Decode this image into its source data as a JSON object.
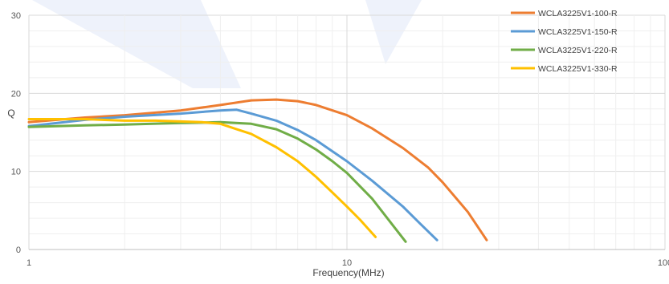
{
  "chart_data": {
    "type": "line",
    "title": "",
    "xlabel": "Frequency(MHz)",
    "ylabel": "Q",
    "x_scale": "log",
    "xlim": [
      1,
      100
    ],
    "ylim": [
      0,
      30
    ],
    "x_ticks": [
      1,
      10,
      100
    ],
    "x_tick_labels": [
      "1",
      "10",
      "100"
    ],
    "y_ticks": [
      0,
      10,
      20,
      30
    ],
    "y_tick_labels": [
      "0",
      "10",
      "20",
      "30"
    ],
    "grid": "major and minor",
    "legend_position": "top-right",
    "series": [
      {
        "name": "WCLA3225V1-100-R",
        "color": "#ED7D31",
        "x": [
          1,
          1.5,
          2,
          3,
          4,
          5,
          6,
          7,
          8,
          10,
          12,
          15,
          18,
          20,
          24,
          27.5
        ],
        "y": [
          16.3,
          16.9,
          17.2,
          17.8,
          18.5,
          19.1,
          19.2,
          19.0,
          18.5,
          17.2,
          15.5,
          13.0,
          10.5,
          8.6,
          4.8,
          1.2
        ]
      },
      {
        "name": "WCLA3225V1-150-R",
        "color": "#5B9BD5",
        "x": [
          1,
          1.5,
          2,
          3,
          4,
          4.5,
          5,
          6,
          7,
          8,
          10,
          12,
          15,
          17,
          19.2
        ],
        "y": [
          15.8,
          16.6,
          17.0,
          17.4,
          17.8,
          17.9,
          17.4,
          16.5,
          15.3,
          14.0,
          11.3,
          8.8,
          5.5,
          3.3,
          1.2
        ]
      },
      {
        "name": "WCLA3225V1-220-R",
        "color": "#70AD47",
        "x": [
          1,
          1.5,
          2,
          3,
          4,
          5,
          6,
          7,
          8,
          9,
          10,
          12,
          14,
          15.3
        ],
        "y": [
          15.7,
          15.9,
          16.0,
          16.2,
          16.3,
          16.1,
          15.4,
          14.2,
          12.8,
          11.3,
          9.8,
          6.5,
          3.0,
          1.0
        ]
      },
      {
        "name": "WCLA3225V1-330-R",
        "color": "#FFC000",
        "x": [
          1,
          1.5,
          2,
          2.5,
          3,
          3.5,
          4,
          4.5,
          5,
          6,
          7,
          8,
          9,
          10,
          11,
          12.3
        ],
        "y": [
          16.7,
          16.7,
          16.5,
          16.5,
          16.4,
          16.3,
          16.1,
          15.4,
          14.8,
          13.1,
          11.3,
          9.3,
          7.3,
          5.5,
          3.8,
          1.6
        ]
      }
    ]
  }
}
